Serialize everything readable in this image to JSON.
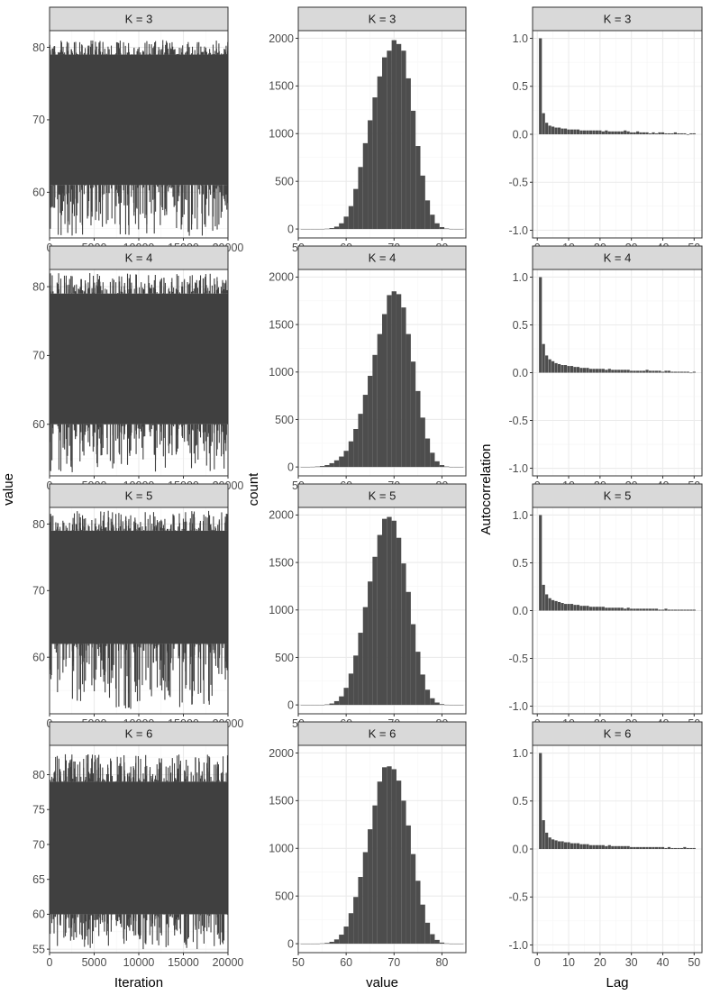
{
  "chart_data": {
    "type": "faceted",
    "column_titles": {
      "y": [
        "value",
        "count",
        "Autocorrelation"
      ],
      "x": [
        "Iteration",
        "value",
        "Lag"
      ]
    },
    "facets": [
      "K = 3",
      "K = 4",
      "K = 5",
      "K = 6"
    ],
    "trace": {
      "type": "line",
      "x_range": [
        0,
        20000
      ],
      "x_ticks": [
        0,
        5000,
        10000,
        15000,
        20000
      ],
      "x_tick_labels": [
        "0",
        "5000",
        "10000",
        "15000",
        "20000"
      ],
      "panels": [
        {
          "facet": "K = 3",
          "y_range": [
            53.7,
            82.3
          ],
          "y_ticks": [
            60,
            70,
            80
          ],
          "body": [
            61,
            79
          ],
          "min": 54,
          "max": 81
        },
        {
          "facet": "K = 4",
          "y_range": [
            52.5,
            82.5
          ],
          "y_ticks": [
            60,
            70,
            80
          ],
          "body": [
            60,
            79
          ],
          "min": 53,
          "max": 82
        },
        {
          "facet": "K = 5",
          "y_range": [
            51.5,
            82.5
          ],
          "y_ticks": [
            60,
            70,
            80
          ],
          "body": [
            62,
            79
          ],
          "min": 52,
          "max": 82
        },
        {
          "facet": "K = 6",
          "y_range": [
            54.5,
            84.2
          ],
          "y_ticks": [
            55,
            60,
            65,
            70,
            75,
            80
          ],
          "body": [
            60,
            79
          ],
          "min": 55,
          "max": 83
        }
      ]
    },
    "histogram": {
      "type": "bar",
      "x_range": [
        50,
        85
      ],
      "x_ticks": [
        50,
        60,
        70,
        80
      ],
      "y_ticks": [
        0,
        500,
        1000,
        1500,
        2000
      ],
      "bin_centers": [
        51,
        52,
        53,
        54,
        55,
        56,
        57,
        58,
        59,
        60,
        61,
        62,
        63,
        64,
        65,
        66,
        67,
        68,
        69,
        70,
        71,
        72,
        73,
        74,
        75,
        76,
        77,
        78,
        79,
        80,
        81,
        82,
        83,
        84
      ],
      "panels": [
        {
          "facet": "K = 3",
          "y_max": 2080,
          "counts": [
            0,
            0,
            0,
            0,
            1,
            3,
            10,
            25,
            60,
            130,
            240,
            420,
            650,
            900,
            1140,
            1380,
            1600,
            1800,
            1870,
            1980,
            1940,
            1870,
            1580,
            1240,
            870,
            560,
            300,
            150,
            60,
            20,
            5,
            1,
            0,
            0
          ]
        },
        {
          "facet": "K = 4",
          "y_max": 2080,
          "counts": [
            0,
            1,
            2,
            5,
            10,
            20,
            40,
            70,
            110,
            170,
            270,
            400,
            560,
            760,
            960,
            1180,
            1400,
            1610,
            1810,
            1850,
            1820,
            1680,
            1400,
            1110,
            800,
            520,
            300,
            150,
            60,
            20,
            5,
            1,
            0,
            0
          ]
        },
        {
          "facet": "K = 5",
          "y_max": 2080,
          "counts": [
            0,
            0,
            0,
            0,
            1,
            5,
            15,
            40,
            90,
            180,
            330,
            520,
            760,
            1030,
            1300,
            1560,
            1790,
            1960,
            1980,
            1940,
            1760,
            1490,
            1190,
            850,
            560,
            320,
            160,
            70,
            25,
            8,
            2,
            0,
            0,
            0
          ]
        },
        {
          "facet": "K = 6",
          "y_max": 2080,
          "counts": [
            0,
            0,
            0,
            1,
            3,
            8,
            20,
            45,
            95,
            180,
            320,
            490,
            700,
            960,
            1200,
            1450,
            1700,
            1850,
            1860,
            1830,
            1710,
            1500,
            1240,
            940,
            660,
            410,
            220,
            100,
            40,
            12,
            3,
            1,
            0,
            0
          ]
        }
      ]
    },
    "acf": {
      "type": "bar",
      "x_range": [
        -1.5,
        52.5
      ],
      "x_ticks": [
        0,
        10,
        20,
        30,
        40,
        50
      ],
      "y_range": [
        -1.08,
        1.08
      ],
      "y_ticks": [
        -1.0,
        -0.5,
        0.0,
        0.5,
        1.0
      ],
      "y_tick_labels": [
        "-1.0",
        "-0.5",
        "0.0",
        "0.5",
        "1.0"
      ],
      "lags": [
        1,
        2,
        3,
        4,
        5,
        6,
        7,
        8,
        9,
        10,
        11,
        12,
        13,
        14,
        15,
        16,
        17,
        18,
        19,
        20,
        21,
        22,
        23,
        24,
        25,
        26,
        27,
        28,
        29,
        30,
        31,
        32,
        33,
        34,
        35,
        36,
        37,
        38,
        39,
        40,
        41,
        42,
        43,
        44,
        45,
        46,
        47,
        48,
        49,
        50
      ],
      "panels": [
        {
          "facet": "K = 3",
          "values": [
            1.0,
            0.22,
            0.12,
            0.09,
            0.08,
            0.07,
            0.07,
            0.06,
            0.06,
            0.05,
            0.05,
            0.05,
            0.05,
            0.04,
            0.04,
            0.04,
            0.04,
            0.04,
            0.04,
            0.04,
            0.03,
            0.04,
            0.03,
            0.03,
            0.03,
            0.03,
            0.03,
            0.04,
            0.03,
            0.02,
            0.02,
            0.03,
            0.02,
            0.02,
            0.02,
            0.01,
            0.02,
            0.01,
            0.02,
            0.02,
            0.01,
            0.01,
            0.01,
            0.02,
            0.01,
            0.01,
            0.01,
            0.0,
            0.01,
            0.01
          ]
        },
        {
          "facet": "K = 4",
          "values": [
            1.0,
            0.3,
            0.18,
            0.14,
            0.12,
            0.1,
            0.09,
            0.08,
            0.08,
            0.07,
            0.07,
            0.06,
            0.06,
            0.05,
            0.05,
            0.05,
            0.04,
            0.04,
            0.04,
            0.04,
            0.04,
            0.03,
            0.04,
            0.03,
            0.03,
            0.03,
            0.03,
            0.03,
            0.03,
            0.02,
            0.02,
            0.02,
            0.02,
            0.02,
            0.03,
            0.02,
            0.02,
            0.02,
            0.02,
            0.01,
            0.02,
            0.02,
            0.01,
            0.01,
            0.01,
            0.01,
            0.01,
            0.01,
            0.0,
            0.01
          ]
        },
        {
          "facet": "K = 5",
          "values": [
            1.0,
            0.27,
            0.17,
            0.13,
            0.11,
            0.1,
            0.09,
            0.08,
            0.07,
            0.07,
            0.07,
            0.06,
            0.06,
            0.05,
            0.05,
            0.05,
            0.04,
            0.04,
            0.04,
            0.04,
            0.04,
            0.03,
            0.03,
            0.03,
            0.03,
            0.03,
            0.03,
            0.02,
            0.03,
            0.02,
            0.02,
            0.02,
            0.02,
            0.02,
            0.02,
            0.02,
            0.02,
            0.02,
            0.01,
            0.01,
            0.02,
            0.01,
            0.01,
            0.01,
            0.01,
            0.01,
            0.01,
            0.01,
            0.01,
            0.01
          ]
        },
        {
          "facet": "K = 6",
          "values": [
            1.0,
            0.3,
            0.17,
            0.12,
            0.1,
            0.09,
            0.08,
            0.08,
            0.07,
            0.07,
            0.06,
            0.06,
            0.06,
            0.05,
            0.05,
            0.05,
            0.04,
            0.04,
            0.04,
            0.04,
            0.04,
            0.03,
            0.04,
            0.03,
            0.03,
            0.03,
            0.03,
            0.03,
            0.03,
            0.02,
            0.02,
            0.02,
            0.02,
            0.02,
            0.02,
            0.02,
            0.02,
            0.02,
            0.02,
            0.02,
            0.01,
            0.02,
            0.01,
            0.01,
            0.01,
            0.01,
            0.02,
            0.01,
            0.01,
            0.01
          ]
        }
      ]
    },
    "colors": {
      "mark": "#4d4d4d",
      "trace": "#404040",
      "grid_major": "#ebebeb",
      "grid_minor": "#f5f5f5",
      "strip_fill": "#d9d9d9",
      "border": "#333333",
      "tick_text": "#4d4d4d"
    }
  }
}
